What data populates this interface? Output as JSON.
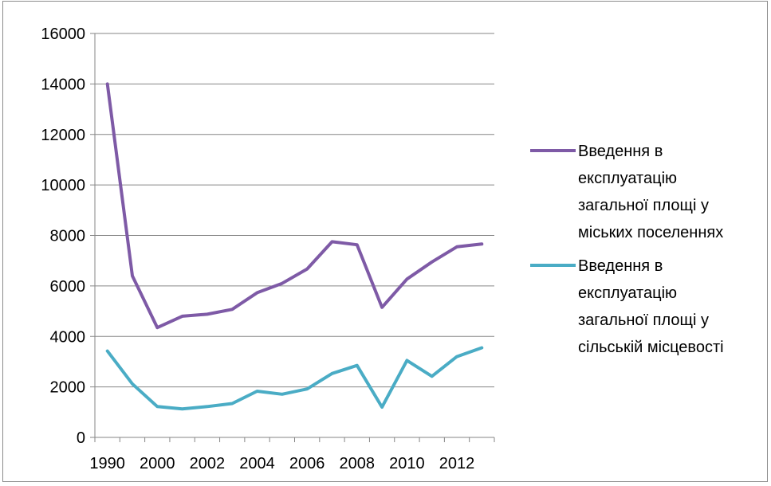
{
  "chart_data": {
    "type": "line",
    "x": [
      "1990",
      "1995",
      "2000",
      "2001",
      "2002",
      "2003",
      "2004",
      "2005",
      "2006",
      "2007",
      "2008",
      "2009",
      "2010",
      "2011",
      "2012",
      "2013"
    ],
    "x_tick_labels": [
      "1990",
      "2000",
      "2002",
      "2004",
      "2006",
      "2008",
      "2010",
      "2012"
    ],
    "y_ticks": [
      "0",
      "2000",
      "4000",
      "6000",
      "8000",
      "10000",
      "12000",
      "14000",
      "16000"
    ],
    "ylim": [
      0,
      16000
    ],
    "grid": true,
    "legend_position": "right",
    "series": [
      {
        "name_lines": [
          "Введення в",
          "експлуатацію",
          "загальної площі у",
          "міських поселеннях"
        ],
        "color": "#7e5aa6",
        "values": [
          14000,
          6400,
          4350,
          4800,
          4880,
          5070,
          5730,
          6100,
          6670,
          7750,
          7630,
          5150,
          6270,
          6950,
          7550,
          7660
        ]
      },
      {
        "name_lines": [
          "Введення в",
          "експлуатацію",
          "загальної площі у",
          "сільській місцевості"
        ],
        "color": "#4aacc5",
        "values": [
          3420,
          2120,
          1220,
          1130,
          1220,
          1340,
          1830,
          1710,
          1920,
          2530,
          2850,
          1200,
          3050,
          2420,
          3200,
          3550
        ]
      }
    ]
  }
}
